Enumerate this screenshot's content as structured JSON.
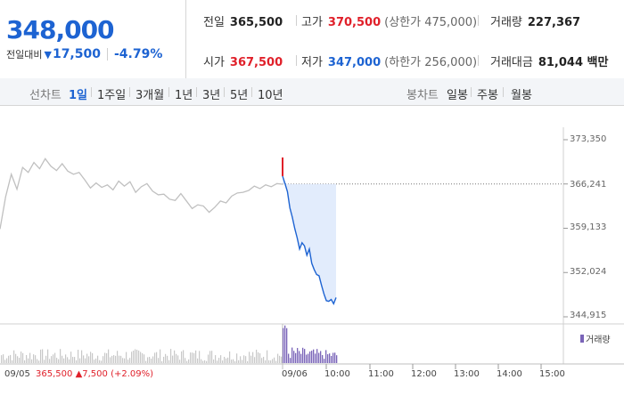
{
  "summary": {
    "current_price": "348,000",
    "change_label": "전일대비",
    "change_direction": "▼",
    "change_abs": "17,500",
    "change_pct": "-4.79%"
  },
  "stats": {
    "prev_close_label": "전일",
    "prev_close": "365,500",
    "high_label": "고가",
    "high": "370,500",
    "upper_limit": "(상한가 475,000)",
    "volume_label": "거래량",
    "volume": "227,367",
    "open_label": "시가",
    "open": "367,500",
    "low_label": "저가",
    "low": "347,000",
    "lower_limit": "(하한가 256,000)",
    "amount_label": "거래대금",
    "amount": "81,044 백만"
  },
  "tabs": {
    "line_label": "선차트",
    "line_tabs": [
      "1일",
      "1주일",
      "3개월",
      "1년",
      "3년",
      "5년",
      "10년"
    ],
    "line_active": "1일",
    "candle_label": "봉차트",
    "candle_tabs": [
      "일봉",
      "주봉",
      "월봉"
    ]
  },
  "colors": {
    "up": "#e0202a",
    "down": "#1d63d2",
    "volume": "#7a64b8",
    "prev_line": "#c0c0c0",
    "fill": "#dde9fb"
  },
  "chart_data": {
    "type": "line",
    "y_ticks": [
      "373,350",
      "366,241",
      "359,133",
      "352,024",
      "344,915"
    ],
    "ylim": [
      344915,
      373350
    ],
    "reference_line": 366241,
    "x_ticks": [
      "10:00",
      "11:00",
      "12:00",
      "13:00",
      "14:00",
      "15:00"
    ],
    "prev_day_date": "09/05",
    "today_date": "09/06",
    "prev_close_note": {
      "date": "09/05",
      "close": "365,500",
      "change": "▲7,500",
      "pct": "(+2.09%)"
    },
    "volume_legend": "거래량",
    "series": [
      {
        "values_prev": [
          359000,
          364200,
          367800,
          365400,
          368900,
          368100,
          369700,
          368700,
          370300,
          369100,
          368400,
          369500,
          368300,
          367800,
          368100,
          366900,
          365600,
          366400,
          365700,
          366100,
          365300,
          366700,
          365900,
          366600,
          364900,
          365800,
          366300,
          365100,
          364500,
          364600,
          363800,
          363600,
          364700,
          363500,
          362300,
          362900,
          362700,
          361700,
          362500,
          363500,
          363200,
          364300,
          364800,
          364900,
          365200,
          365900,
          365500,
          366100,
          365800,
          366300,
          366200
        ]
      },
      {
        "values_today": [
          367500,
          366300,
          365000,
          362400,
          360900,
          359100,
          357600,
          355800,
          356800,
          356300,
          354800,
          355800,
          353500,
          352500,
          351700,
          351500,
          350000,
          348600,
          347500,
          347400,
          347700,
          347000,
          348000
        ]
      }
    ],
    "open_spike": {
      "high": 370500,
      "low": 367500
    }
  }
}
